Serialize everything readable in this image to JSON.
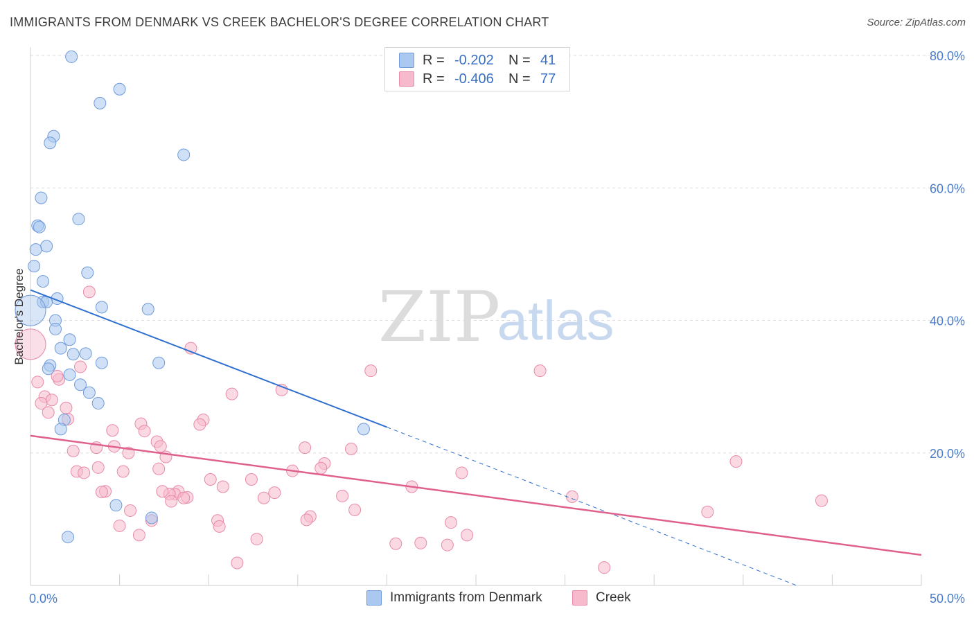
{
  "header": {
    "title": "IMMIGRANTS FROM DENMARK VS CREEK BACHELOR'S DEGREE CORRELATION CHART",
    "source": "Source: ZipAtlas.com"
  },
  "watermark": {
    "zip": "ZIP",
    "atlas": "atlas"
  },
  "legend": {
    "r_label": "R =",
    "n_label": "N =",
    "rows": [
      {
        "r": "-0.202",
        "n": "41"
      },
      {
        "r": "-0.406",
        "n": "77"
      }
    ]
  },
  "colors": {
    "blue_fill": "#aac8f0",
    "blue_stroke": "#6f9ad8",
    "blue_line": "#2f6fcf",
    "pink_fill": "#f7b9cc",
    "pink_stroke": "#e88aa8",
    "pink_line": "#e0608d"
  },
  "chart_data": {
    "type": "scatter",
    "title": "IMMIGRANTS FROM DENMARK VS CREEK BACHELOR'S DEGREE CORRELATION CHART",
    "xlabel": "",
    "ylabel": "Bachelor's Degree",
    "xlim": [
      0,
      50
    ],
    "ylim": [
      0,
      80
    ],
    "x_tick_labels": [
      "0.0%",
      "50.0%"
    ],
    "y_ticks": [
      20,
      40,
      60,
      80
    ],
    "y_tick_labels": [
      "20.0%",
      "40.0%",
      "60.0%",
      "80.0%"
    ],
    "grid": true,
    "legend_position": "bottom",
    "series": [
      {
        "name": "Immigrants from Denmark",
        "r": -0.202,
        "n": 41,
        "trend": {
          "x0": 0,
          "y0": 44.6,
          "x1": 20,
          "y1": 23.9,
          "dashed_to_x": 43,
          "dashed_to_y": 0
        },
        "points": [
          [
            2.3,
            79.8
          ],
          [
            5.0,
            74.9
          ],
          [
            3.9,
            72.8
          ],
          [
            1.3,
            67.8
          ],
          [
            1.1,
            66.8
          ],
          [
            8.6,
            65.0
          ],
          [
            0.6,
            58.5
          ],
          [
            2.7,
            55.3
          ],
          [
            0.4,
            54.3
          ],
          [
            0.5,
            54.1
          ],
          [
            0.9,
            51.2
          ],
          [
            0.3,
            50.7
          ],
          [
            0.2,
            48.2
          ],
          [
            3.2,
            47.2
          ],
          [
            0.7,
            45.9
          ],
          [
            1.5,
            43.3
          ],
          [
            0.7,
            42.8
          ],
          [
            0.9,
            42.8
          ],
          [
            4.0,
            42.0
          ],
          [
            6.6,
            41.7
          ],
          [
            0.0,
            41.5
          ],
          [
            1.4,
            40.0
          ],
          [
            1.4,
            38.7
          ],
          [
            2.2,
            37.1
          ],
          [
            1.7,
            35.8
          ],
          [
            3.1,
            35.0
          ],
          [
            2.4,
            34.9
          ],
          [
            4.0,
            33.6
          ],
          [
            7.2,
            33.6
          ],
          [
            1.1,
            33.2
          ],
          [
            1.0,
            32.7
          ],
          [
            2.2,
            31.8
          ],
          [
            2.8,
            30.3
          ],
          [
            3.3,
            29.1
          ],
          [
            3.8,
            27.5
          ],
          [
            1.9,
            25.0
          ],
          [
            1.7,
            23.6
          ],
          [
            18.7,
            23.6
          ],
          [
            4.8,
            12.1
          ],
          [
            6.8,
            10.2
          ],
          [
            2.1,
            7.3
          ]
        ]
      },
      {
        "name": "Creek",
        "r": -0.406,
        "n": 77,
        "trend": {
          "x0": 0,
          "y0": 22.6,
          "x1": 50,
          "y1": 4.6
        },
        "points": [
          [
            0.0,
            36.4
          ],
          [
            3.3,
            44.3
          ],
          [
            9.0,
            35.8
          ],
          [
            19.1,
            32.4
          ],
          [
            28.6,
            32.4
          ],
          [
            2.8,
            33.0
          ],
          [
            0.4,
            30.7
          ],
          [
            1.6,
            31.1
          ],
          [
            1.5,
            31.6
          ],
          [
            14.1,
            29.5
          ],
          [
            11.3,
            28.9
          ],
          [
            0.8,
            28.5
          ],
          [
            1.2,
            28.0
          ],
          [
            0.6,
            27.5
          ],
          [
            2.0,
            26.8
          ],
          [
            1.0,
            26.1
          ],
          [
            2.1,
            25.1
          ],
          [
            9.7,
            25.0
          ],
          [
            9.5,
            24.3
          ],
          [
            6.2,
            24.4
          ],
          [
            6.4,
            23.3
          ],
          [
            4.6,
            23.4
          ],
          [
            7.1,
            21.7
          ],
          [
            7.3,
            21.0
          ],
          [
            15.4,
            20.8
          ],
          [
            18.0,
            20.6
          ],
          [
            4.7,
            21.0
          ],
          [
            3.7,
            20.8
          ],
          [
            2.4,
            20.3
          ],
          [
            5.5,
            20.0
          ],
          [
            7.6,
            19.4
          ],
          [
            16.5,
            18.4
          ],
          [
            39.6,
            18.7
          ],
          [
            3.8,
            17.8
          ],
          [
            7.2,
            17.6
          ],
          [
            2.6,
            17.2
          ],
          [
            5.2,
            17.2
          ],
          [
            3.0,
            17.0
          ],
          [
            14.7,
            17.3
          ],
          [
            16.3,
            17.7
          ],
          [
            24.2,
            17.0
          ],
          [
            10.1,
            16.0
          ],
          [
            12.4,
            16.0
          ],
          [
            10.8,
            14.9
          ],
          [
            21.4,
            14.9
          ],
          [
            4.2,
            14.2
          ],
          [
            4.0,
            14.1
          ],
          [
            8.3,
            14.2
          ],
          [
            13.7,
            14.0
          ],
          [
            8.1,
            13.8
          ],
          [
            7.8,
            13.8
          ],
          [
            17.5,
            13.5
          ],
          [
            8.8,
            13.3
          ],
          [
            30.4,
            13.4
          ],
          [
            8.6,
            13.2
          ],
          [
            13.1,
            13.2
          ],
          [
            7.9,
            12.7
          ],
          [
            44.4,
            12.8
          ],
          [
            5.6,
            11.3
          ],
          [
            18.2,
            11.4
          ],
          [
            38.0,
            11.1
          ],
          [
            15.7,
            10.4
          ],
          [
            6.8,
            9.8
          ],
          [
            15.5,
            9.9
          ],
          [
            10.5,
            9.8
          ],
          [
            23.6,
            9.5
          ],
          [
            5.0,
            9.0
          ],
          [
            10.6,
            8.9
          ],
          [
            6.1,
            7.6
          ],
          [
            24.5,
            7.6
          ],
          [
            12.7,
            7.0
          ],
          [
            20.5,
            6.3
          ],
          [
            21.9,
            6.4
          ],
          [
            23.4,
            6.1
          ],
          [
            11.6,
            3.4
          ],
          [
            32.2,
            2.7
          ],
          [
            7.4,
            14.2
          ]
        ]
      }
    ]
  }
}
